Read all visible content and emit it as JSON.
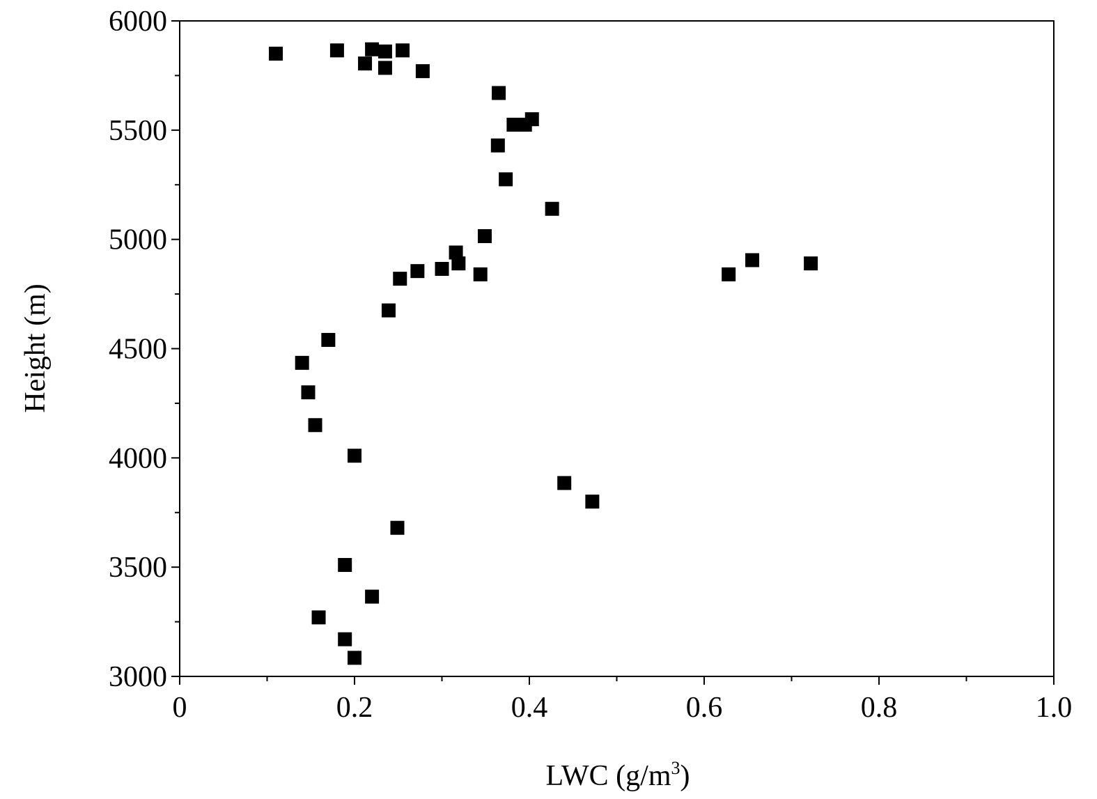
{
  "chart_data": {
    "type": "scatter",
    "title": "",
    "xlabel": "LWC (g/m",
    "xlabel_sup": "3",
    "xlabel_end": ")",
    "ylabel": "Height (m)",
    "xlim": [
      0,
      1.0
    ],
    "ylim": [
      3000,
      6000
    ],
    "x_ticks": [
      0,
      0.2,
      0.4,
      0.6,
      0.8,
      1.0
    ],
    "x_tick_labels": [
      "0",
      "0.2",
      "0.4",
      "0.6",
      "0.8",
      "1.0"
    ],
    "y_ticks": [
      3000,
      3500,
      4000,
      4500,
      5000,
      5500,
      6000
    ],
    "y_tick_labels": [
      "3000",
      "3500",
      "4000",
      "4500",
      "5000",
      "5500",
      "6000"
    ],
    "grid": false,
    "marker": "square",
    "marker_color": "#000000",
    "points": [
      {
        "x": 0.11,
        "y": 5850
      },
      {
        "x": 0.18,
        "y": 5865
      },
      {
        "x": 0.22,
        "y": 5870
      },
      {
        "x": 0.235,
        "y": 5860
      },
      {
        "x": 0.255,
        "y": 5865
      },
      {
        "x": 0.212,
        "y": 5805
      },
      {
        "x": 0.235,
        "y": 5785
      },
      {
        "x": 0.278,
        "y": 5770
      },
      {
        "x": 0.365,
        "y": 5670
      },
      {
        "x": 0.382,
        "y": 5525
      },
      {
        "x": 0.395,
        "y": 5525
      },
      {
        "x": 0.403,
        "y": 5550
      },
      {
        "x": 0.364,
        "y": 5430
      },
      {
        "x": 0.373,
        "y": 5275
      },
      {
        "x": 0.426,
        "y": 5140
      },
      {
        "x": 0.349,
        "y": 5015
      },
      {
        "x": 0.316,
        "y": 4940
      },
      {
        "x": 0.319,
        "y": 4890
      },
      {
        "x": 0.3,
        "y": 4865
      },
      {
        "x": 0.272,
        "y": 4855
      },
      {
        "x": 0.344,
        "y": 4840
      },
      {
        "x": 0.252,
        "y": 4820
      },
      {
        "x": 0.239,
        "y": 4675
      },
      {
        "x": 0.17,
        "y": 4540
      },
      {
        "x": 0.14,
        "y": 4435
      },
      {
        "x": 0.147,
        "y": 4300
      },
      {
        "x": 0.155,
        "y": 4150
      },
      {
        "x": 0.2,
        "y": 4010
      },
      {
        "x": 0.628,
        "y": 4840
      },
      {
        "x": 0.655,
        "y": 4905
      },
      {
        "x": 0.722,
        "y": 4890
      },
      {
        "x": 0.44,
        "y": 3885
      },
      {
        "x": 0.472,
        "y": 3800
      },
      {
        "x": 0.249,
        "y": 3680
      },
      {
        "x": 0.189,
        "y": 3510
      },
      {
        "x": 0.22,
        "y": 3365
      },
      {
        "x": 0.159,
        "y": 3270
      },
      {
        "x": 0.189,
        "y": 3170
      },
      {
        "x": 0.2,
        "y": 3085
      }
    ]
  }
}
